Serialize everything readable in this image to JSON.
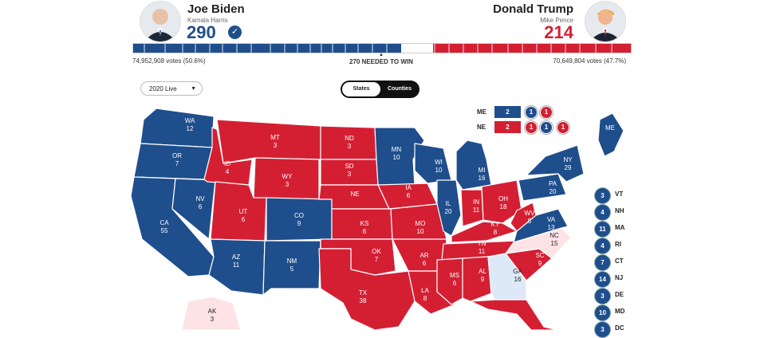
{
  "colors": {
    "dem": "#1f4e8c",
    "rep": "#d41f33",
    "tossup_rep": "#fde3e5",
    "tossup_dem": "#dde9f7",
    "bg": "#ffffff"
  },
  "biden": {
    "name": "Joe Biden",
    "vp": "Kamala Harris",
    "electoral": "290",
    "check_icon": "check-icon",
    "votes": "74,952,908 votes (50.6%)"
  },
  "trump": {
    "name": "Donald Trump",
    "vp": "Mike Pence",
    "electoral": "214",
    "votes": "70,649,804 votes (47.7%)"
  },
  "progress": {
    "dem_fraction": 0.539,
    "rep_fraction": 0.398,
    "threshold_label": "270 NEEDED TO WIN"
  },
  "controls": {
    "year_select": "2020 Live",
    "toggle": [
      "States",
      "Counties"
    ],
    "active_toggle": "States"
  },
  "districts": {
    "ME": {
      "label": "ME",
      "total": "2",
      "circles": [
        "1",
        "1"
      ]
    },
    "NE": {
      "label": "NE",
      "total": "2",
      "circles": [
        "1",
        "1",
        "1"
      ]
    }
  },
  "small_states": [
    {
      "votes": "3",
      "abbr": "VT"
    },
    {
      "votes": "4",
      "abbr": "NH"
    },
    {
      "votes": "11",
      "abbr": "MA"
    },
    {
      "votes": "4",
      "abbr": "RI"
    },
    {
      "votes": "7",
      "abbr": "CT"
    },
    {
      "votes": "14",
      "abbr": "NJ"
    },
    {
      "votes": "3",
      "abbr": "DE"
    },
    {
      "votes": "10",
      "abbr": "MD"
    },
    {
      "votes": "3",
      "abbr": "DC"
    }
  ],
  "map_states": [
    {
      "abbr": "WA",
      "ev": "12",
      "party": "dem"
    },
    {
      "abbr": "OR",
      "ev": "7",
      "party": "dem"
    },
    {
      "abbr": "CA",
      "ev": "55",
      "party": "dem"
    },
    {
      "abbr": "NV",
      "ev": "6",
      "party": "dem"
    },
    {
      "abbr": "ID",
      "ev": "4",
      "party": "rep"
    },
    {
      "abbr": "MT",
      "ev": "3",
      "party": "rep"
    },
    {
      "abbr": "WY",
      "ev": "3",
      "party": "rep"
    },
    {
      "abbr": "UT",
      "ev": "6",
      "party": "rep"
    },
    {
      "abbr": "AZ",
      "ev": "11",
      "party": "dem"
    },
    {
      "abbr": "CO",
      "ev": "9",
      "party": "dem"
    },
    {
      "abbr": "NM",
      "ev": "5",
      "party": "dem"
    },
    {
      "abbr": "ND",
      "ev": "3",
      "party": "rep"
    },
    {
      "abbr": "SD",
      "ev": "3",
      "party": "rep"
    },
    {
      "abbr": "NE",
      "ev": "",
      "party": "rep"
    },
    {
      "abbr": "KS",
      "ev": "6",
      "party": "rep"
    },
    {
      "abbr": "OK",
      "ev": "7",
      "party": "rep"
    },
    {
      "abbr": "TX",
      "ev": "38",
      "party": "rep"
    },
    {
      "abbr": "MN",
      "ev": "10",
      "party": "dem"
    },
    {
      "abbr": "IA",
      "ev": "6",
      "party": "rep"
    },
    {
      "abbr": "MO",
      "ev": "10",
      "party": "rep"
    },
    {
      "abbr": "AR",
      "ev": "6",
      "party": "rep"
    },
    {
      "abbr": "LA",
      "ev": "8",
      "party": "rep"
    },
    {
      "abbr": "WI",
      "ev": "10",
      "party": "dem"
    },
    {
      "abbr": "IL",
      "ev": "20",
      "party": "dem"
    },
    {
      "abbr": "MI",
      "ev": "16",
      "party": "dem"
    },
    {
      "abbr": "IN",
      "ev": "11",
      "party": "rep"
    },
    {
      "abbr": "OH",
      "ev": "18",
      "party": "rep"
    },
    {
      "abbr": "KY",
      "ev": "8",
      "party": "rep"
    },
    {
      "abbr": "TN",
      "ev": "11",
      "party": "rep"
    },
    {
      "abbr": "MS",
      "ev": "6",
      "party": "rep"
    },
    {
      "abbr": "AL",
      "ev": "9",
      "party": "rep"
    },
    {
      "abbr": "GA",
      "ev": "16",
      "party": "tossup_dem"
    },
    {
      "abbr": "FL",
      "ev": "29",
      "party": "rep"
    },
    {
      "abbr": "SC",
      "ev": "9",
      "party": "rep"
    },
    {
      "abbr": "NC",
      "ev": "15",
      "party": "tossup_rep"
    },
    {
      "abbr": "VA",
      "ev": "13",
      "party": "dem"
    },
    {
      "abbr": "WV",
      "ev": "5",
      "party": "rep"
    },
    {
      "abbr": "PA",
      "ev": "20",
      "party": "dem"
    },
    {
      "abbr": "NY",
      "ev": "29",
      "party": "dem"
    },
    {
      "abbr": "ME",
      "ev": "",
      "party": "dem"
    },
    {
      "abbr": "AK",
      "ev": "3",
      "party": "tossup_rep"
    }
  ]
}
